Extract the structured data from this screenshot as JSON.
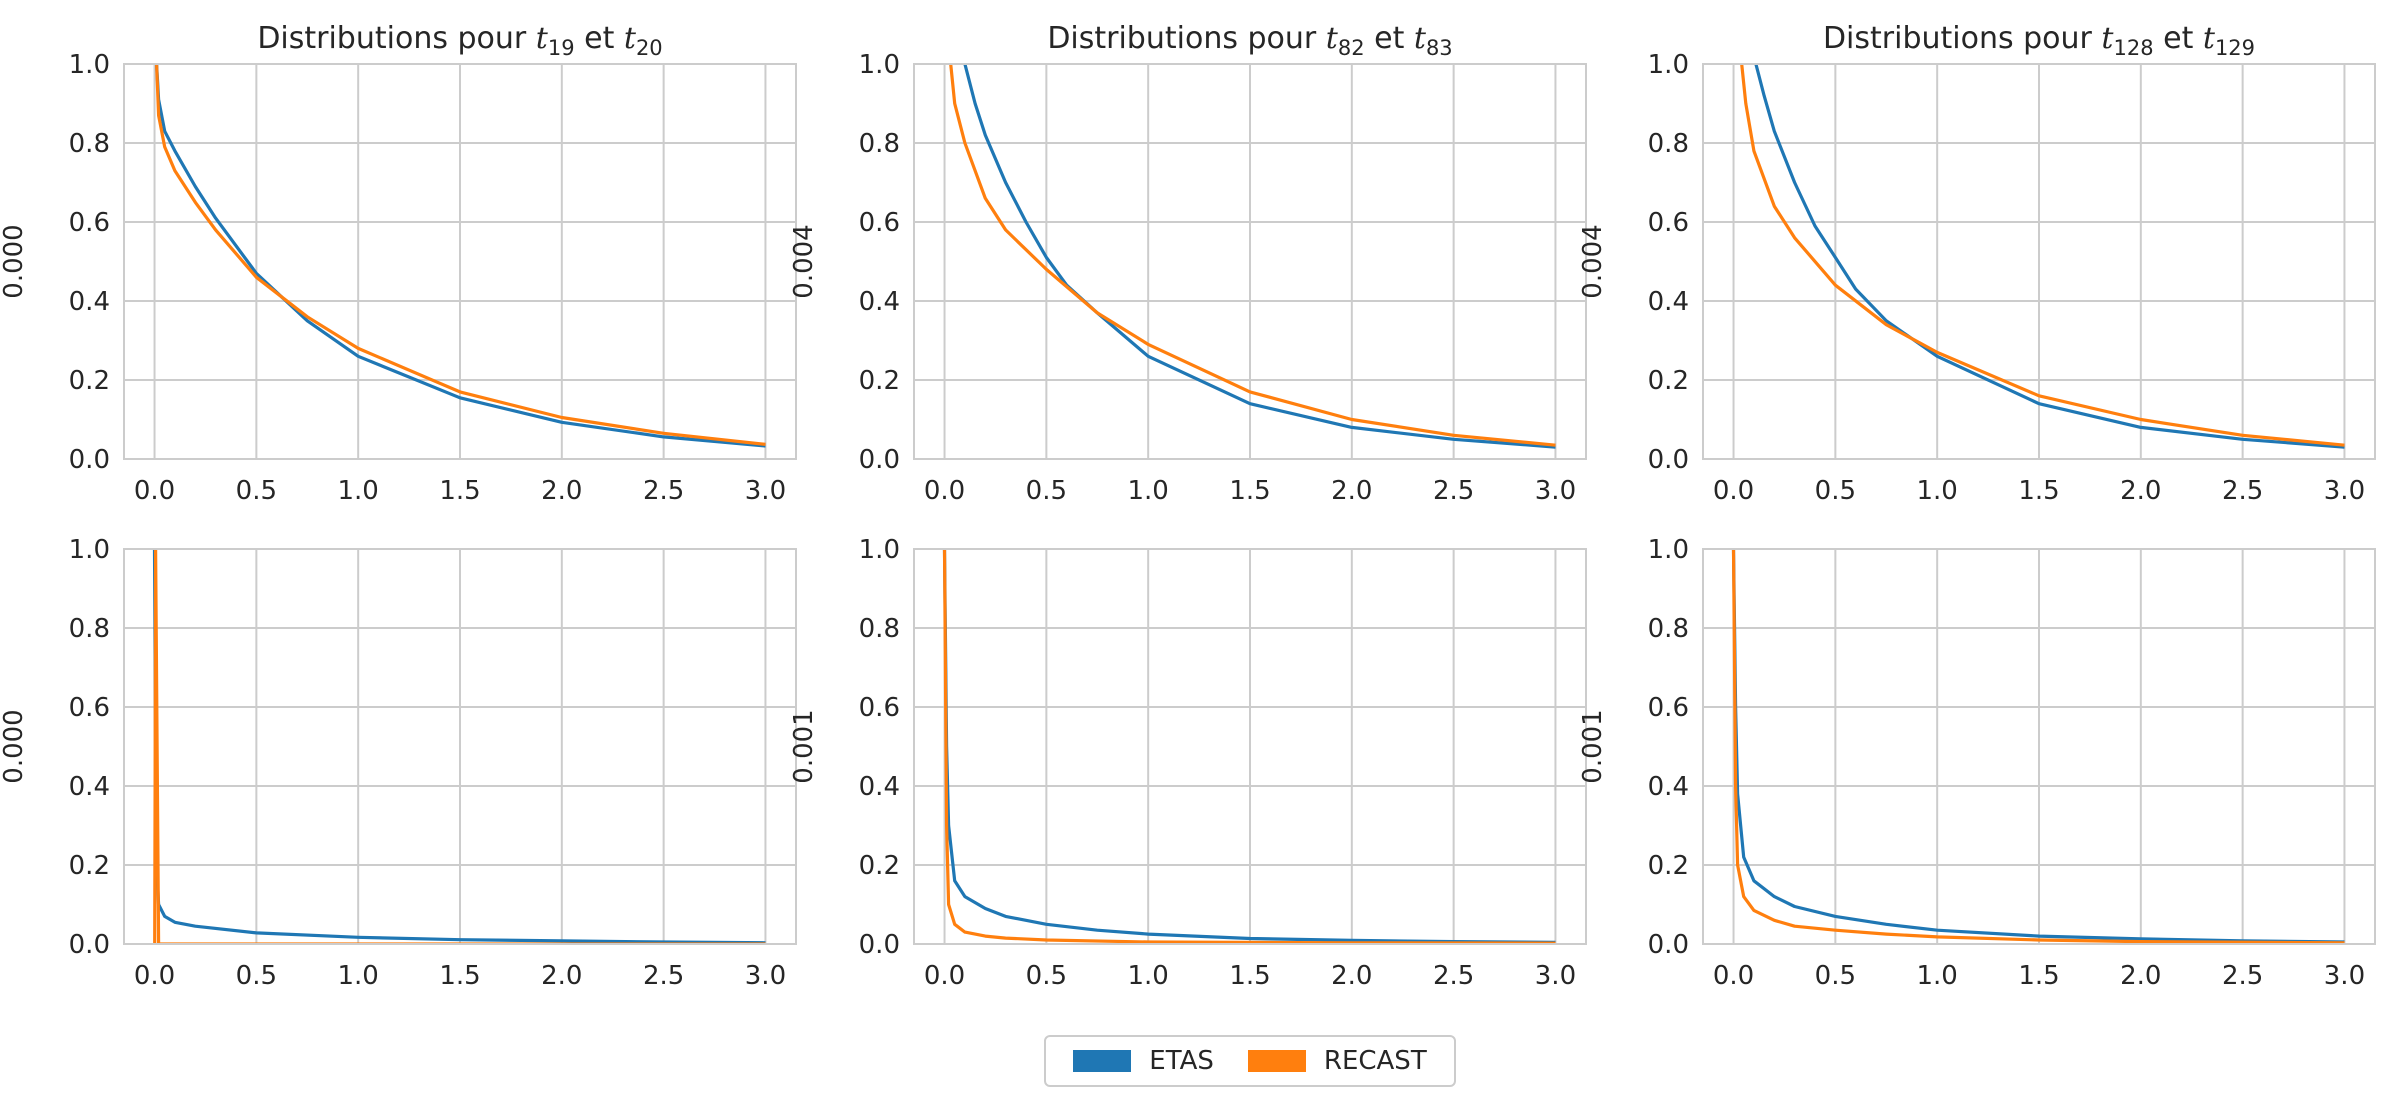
{
  "colors": {
    "ETAS": "#1f77b4",
    "RECAST": "#ff7f0e",
    "grid": "#cccccc",
    "axes": "#cccccc",
    "text": "#262626"
  },
  "legend": {
    "etas_label": "ETAS",
    "recast_label": "RECAST",
    "placement": "bottom-center"
  },
  "chart_data": [
    {
      "type": "line",
      "row": 1,
      "col": 1,
      "title": "Distributions pour t_19 et t_20",
      "title_parts": {
        "prefix": "Distributions pour ",
        "a": "t",
        "a_sub": "19",
        "mid": " et ",
        "b": "t",
        "b_sub": "20"
      },
      "ylabel": "0.000",
      "xlim": [
        0,
        3
      ],
      "ylim": [
        0,
        1
      ],
      "xticks": [
        "0.0",
        "0.5",
        "1.0",
        "1.5",
        "2.0",
        "2.5",
        "3.0"
      ],
      "yticks": [
        "0.0",
        "0.2",
        "0.4",
        "0.6",
        "0.8",
        "1.0"
      ],
      "grid": true,
      "series": [
        {
          "name": "ETAS",
          "x": [
            0.01,
            0.02,
            0.05,
            0.1,
            0.2,
            0.3,
            0.5,
            0.75,
            1.0,
            1.5,
            2.0,
            2.5,
            3.0
          ],
          "y": [
            1.0,
            0.91,
            0.83,
            0.78,
            0.69,
            0.61,
            0.47,
            0.35,
            0.26,
            0.155,
            0.093,
            0.056,
            0.033
          ]
        },
        {
          "name": "RECAST",
          "x": [
            0.01,
            0.02,
            0.05,
            0.1,
            0.2,
            0.3,
            0.5,
            0.75,
            1.0,
            1.5,
            2.0,
            2.5,
            3.0
          ],
          "y": [
            1.0,
            0.87,
            0.79,
            0.73,
            0.65,
            0.58,
            0.46,
            0.36,
            0.28,
            0.17,
            0.105,
            0.065,
            0.037
          ]
        }
      ]
    },
    {
      "type": "line",
      "row": 1,
      "col": 2,
      "title": "Distributions pour t_82 et t_83",
      "title_parts": {
        "prefix": "Distributions pour ",
        "a": "t",
        "a_sub": "82",
        "mid": " et ",
        "b": "t",
        "b_sub": "83"
      },
      "ylabel": "0.004",
      "xlim": [
        0,
        3
      ],
      "ylim": [
        0,
        1
      ],
      "xticks": [
        "0.0",
        "0.5",
        "1.0",
        "1.5",
        "2.0",
        "2.5",
        "3.0"
      ],
      "yticks": [
        "0.0",
        "0.2",
        "0.4",
        "0.6",
        "0.8",
        "1.0"
      ],
      "grid": true,
      "series": [
        {
          "name": "ETAS",
          "x": [
            0.1,
            0.15,
            0.2,
            0.3,
            0.4,
            0.5,
            0.6,
            0.75,
            1.0,
            1.5,
            2.0,
            2.5,
            3.0
          ],
          "y": [
            1.0,
            0.9,
            0.82,
            0.7,
            0.6,
            0.51,
            0.44,
            0.37,
            0.26,
            0.14,
            0.08,
            0.05,
            0.03
          ]
        },
        {
          "name": "RECAST",
          "x": [
            0.03,
            0.05,
            0.1,
            0.2,
            0.3,
            0.5,
            0.75,
            1.0,
            1.5,
            2.0,
            2.5,
            3.0
          ],
          "y": [
            1.0,
            0.9,
            0.8,
            0.66,
            0.58,
            0.48,
            0.37,
            0.29,
            0.17,
            0.1,
            0.06,
            0.035
          ]
        }
      ]
    },
    {
      "type": "line",
      "row": 1,
      "col": 3,
      "title": "Distributions pour t_128 et t_129",
      "title_parts": {
        "prefix": "Distributions pour ",
        "a": "t",
        "a_sub": "128",
        "mid": " et ",
        "b": "t",
        "b_sub": "129"
      },
      "ylabel": "0.004",
      "xlim": [
        0,
        3
      ],
      "ylim": [
        0,
        1
      ],
      "xticks": [
        "0.0",
        "0.5",
        "1.0",
        "1.5",
        "2.0",
        "2.5",
        "3.0"
      ],
      "yticks": [
        "0.0",
        "0.2",
        "0.4",
        "0.6",
        "0.8",
        "1.0"
      ],
      "grid": true,
      "series": [
        {
          "name": "ETAS",
          "x": [
            0.11,
            0.15,
            0.2,
            0.3,
            0.4,
            0.5,
            0.6,
            0.75,
            1.0,
            1.5,
            2.0,
            2.5,
            3.0
          ],
          "y": [
            1.0,
            0.92,
            0.83,
            0.7,
            0.59,
            0.51,
            0.43,
            0.35,
            0.26,
            0.14,
            0.08,
            0.05,
            0.03
          ]
        },
        {
          "name": "RECAST",
          "x": [
            0.04,
            0.06,
            0.1,
            0.2,
            0.3,
            0.5,
            0.75,
            1.0,
            1.5,
            2.0,
            2.5,
            3.0
          ],
          "y": [
            1.0,
            0.9,
            0.78,
            0.64,
            0.56,
            0.44,
            0.34,
            0.27,
            0.16,
            0.1,
            0.06,
            0.035
          ]
        }
      ]
    },
    {
      "type": "line",
      "row": 2,
      "col": 1,
      "title": "",
      "ylabel": "0.000",
      "xlim": [
        0,
        3
      ],
      "ylim": [
        0,
        1
      ],
      "xticks": [
        "0.0",
        "0.5",
        "1.0",
        "1.5",
        "2.0",
        "2.5",
        "3.0"
      ],
      "yticks": [
        "0.0",
        "0.2",
        "0.4",
        "0.6",
        "0.8",
        "1.0"
      ],
      "grid": true,
      "series": [
        {
          "name": "ETAS",
          "x": [
            0.0,
            0.005,
            0.01,
            0.02,
            0.05,
            0.1,
            0.2,
            0.5,
            1.0,
            1.5,
            2.0,
            2.5,
            3.0
          ],
          "y": [
            1.0,
            0.5,
            0.2,
            0.1,
            0.07,
            0.055,
            0.045,
            0.028,
            0.017,
            0.011,
            0.008,
            0.005,
            0.003
          ]
        },
        {
          "name": "RECAST",
          "x": [
            0.0,
            0.001,
            0.003,
            0.005,
            0.02,
            0.5,
            1.0,
            2.0,
            3.0
          ],
          "y": [
            0.0,
            0.0,
            0.5,
            1.0,
            0.0,
            0.0,
            0.0,
            0.0,
            0.0
          ]
        }
      ]
    },
    {
      "type": "line",
      "row": 2,
      "col": 2,
      "title": "",
      "ylabel": "0.001",
      "xlim": [
        0,
        3
      ],
      "ylim": [
        0,
        1
      ],
      "xticks": [
        "0.0",
        "0.5",
        "1.0",
        "1.5",
        "2.0",
        "2.5",
        "3.0"
      ],
      "yticks": [
        "0.0",
        "0.2",
        "0.4",
        "0.6",
        "0.8",
        "1.0"
      ],
      "grid": true,
      "series": [
        {
          "name": "ETAS",
          "x": [
            0.0,
            0.01,
            0.02,
            0.05,
            0.1,
            0.2,
            0.3,
            0.5,
            0.75,
            1.0,
            1.5,
            2.0,
            2.5,
            3.0
          ],
          "y": [
            1.0,
            0.5,
            0.3,
            0.16,
            0.12,
            0.09,
            0.07,
            0.05,
            0.035,
            0.025,
            0.014,
            0.009,
            0.006,
            0.004
          ]
        },
        {
          "name": "RECAST",
          "x": [
            0.0,
            0.01,
            0.02,
            0.05,
            0.1,
            0.2,
            0.3,
            0.5,
            1.0,
            2.0,
            3.0
          ],
          "y": [
            1.0,
            0.3,
            0.1,
            0.05,
            0.03,
            0.02,
            0.015,
            0.01,
            0.005,
            0.003,
            0.002
          ]
        }
      ]
    },
    {
      "type": "line",
      "row": 2,
      "col": 3,
      "title": "",
      "ylabel": "0.001",
      "xlim": [
        0,
        3
      ],
      "ylim": [
        0,
        1
      ],
      "xticks": [
        "0.0",
        "0.5",
        "1.0",
        "1.5",
        "2.0",
        "2.5",
        "3.0"
      ],
      "yticks": [
        "0.0",
        "0.2",
        "0.4",
        "0.6",
        "0.8",
        "1.0"
      ],
      "grid": true,
      "series": [
        {
          "name": "ETAS",
          "x": [
            0.0,
            0.01,
            0.02,
            0.05,
            0.1,
            0.2,
            0.3,
            0.5,
            0.75,
            1.0,
            1.5,
            2.0,
            2.5,
            3.0
          ],
          "y": [
            1.0,
            0.6,
            0.38,
            0.22,
            0.16,
            0.12,
            0.095,
            0.07,
            0.05,
            0.035,
            0.02,
            0.013,
            0.008,
            0.005
          ]
        },
        {
          "name": "RECAST",
          "x": [
            0.0,
            0.01,
            0.02,
            0.05,
            0.1,
            0.2,
            0.3,
            0.5,
            0.75,
            1.0,
            1.5,
            2.0,
            3.0
          ],
          "y": [
            1.0,
            0.4,
            0.2,
            0.12,
            0.085,
            0.06,
            0.045,
            0.035,
            0.025,
            0.018,
            0.01,
            0.006,
            0.003
          ]
        }
      ]
    }
  ]
}
